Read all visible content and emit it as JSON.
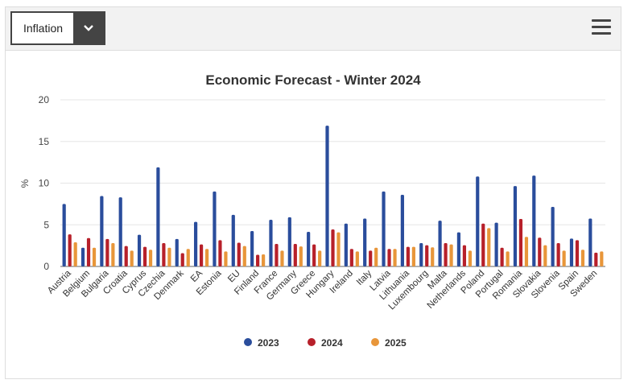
{
  "header": {
    "dropdown_value": "Inflation",
    "dropdown_icon": "chevron-down-icon",
    "menu_icon": "hamburger-menu-icon"
  },
  "chart_data": {
    "type": "bar",
    "title": "Economic Forecast - Winter 2024",
    "xlabel": "",
    "ylabel": "%",
    "ylim": [
      0,
      20
    ],
    "yticks": [
      0,
      5,
      10,
      15,
      20
    ],
    "grid": true,
    "legend_position": "bottom",
    "categories": [
      "Austria",
      "Belgium",
      "Bulgaria",
      "Croatia",
      "Cyprus",
      "Czechia",
      "Denmark",
      "EA",
      "Estonia",
      "EU",
      "Finland",
      "France",
      "Germany",
      "Greece",
      "Hungary",
      "Ireland",
      "Italy",
      "Latvia",
      "Lithuania",
      "Luxembourg",
      "Malta",
      "Netherlands",
      "Poland",
      "Portugal",
      "Romania",
      "Slovakia",
      "Slovenia",
      "Spain",
      "Sweden"
    ],
    "series": [
      {
        "name": "2023",
        "color": "#2a4d9c",
        "values": [
          7.5,
          2.25,
          8.45,
          8.3,
          3.8,
          11.9,
          3.3,
          5.35,
          9.0,
          6.2,
          4.25,
          5.6,
          5.9,
          4.15,
          16.9,
          5.15,
          5.75,
          9.0,
          8.6,
          2.8,
          5.5,
          4.1,
          10.8,
          5.25,
          9.65,
          10.9,
          7.15,
          3.35,
          5.75
        ]
      },
      {
        "name": "2024",
        "color": "#b7202a",
        "values": [
          3.85,
          3.4,
          3.3,
          2.45,
          2.35,
          2.8,
          1.6,
          2.65,
          3.15,
          2.85,
          1.4,
          2.7,
          2.7,
          2.65,
          4.45,
          2.1,
          1.9,
          2.1,
          2.35,
          2.55,
          2.8,
          2.55,
          5.15,
          2.25,
          5.7,
          3.45,
          2.8,
          3.15,
          1.65
        ]
      },
      {
        "name": "2025",
        "color": "#e8963a",
        "values": [
          2.9,
          2.25,
          2.8,
          1.9,
          2.0,
          2.25,
          2.1,
          2.1,
          1.8,
          2.45,
          1.45,
          1.9,
          2.4,
          1.9,
          4.1,
          1.8,
          2.25,
          2.1,
          2.35,
          2.3,
          2.65,
          1.9,
          4.6,
          1.8,
          3.55,
          2.55,
          1.9,
          2.0,
          1.8
        ]
      }
    ]
  }
}
